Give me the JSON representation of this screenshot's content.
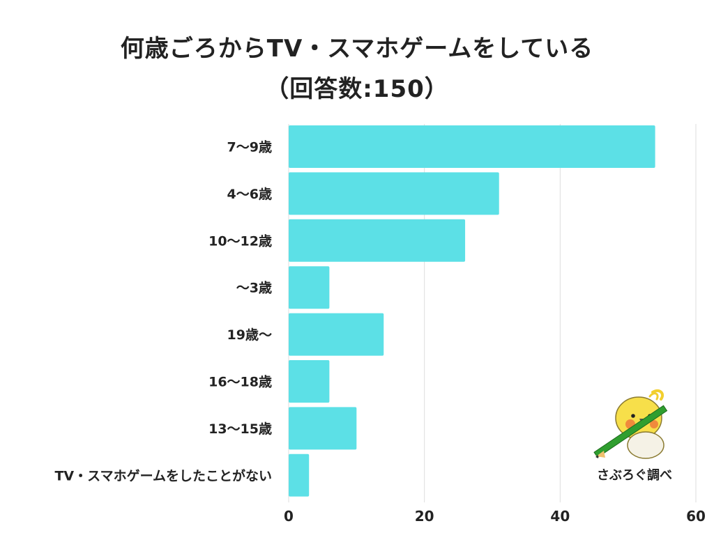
{
  "title": {
    "line1": "何歳ごろからTV・スマホゲームをしている",
    "line2": "（回答数:150）"
  },
  "credit": "さぶろぐ調べ",
  "chart_data": {
    "type": "bar",
    "orientation": "horizontal",
    "categories": [
      "7〜9歳",
      "4〜6歳",
      "10〜12歳",
      "〜3歳",
      "19歳〜",
      "16〜18歳",
      "13〜15歳",
      "TV・スマホゲームをしたことがない"
    ],
    "values": [
      54,
      31,
      26,
      6,
      14,
      6,
      10,
      3
    ],
    "xlim": [
      0,
      60
    ],
    "xticks": [
      0,
      20,
      40,
      60
    ],
    "grid": true,
    "bar_color": "#5ce0e6",
    "grid_color": "#dddddd"
  }
}
